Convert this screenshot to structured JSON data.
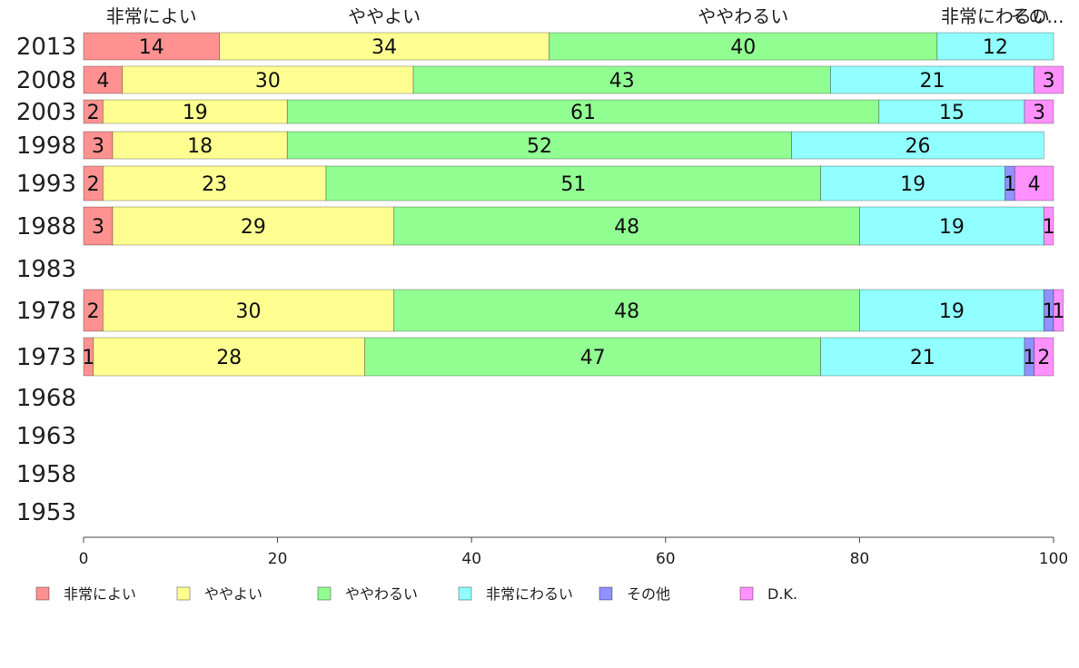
{
  "chart_data": {
    "type": "bar",
    "orientation": "horizontal",
    "stacked": true,
    "xlim": [
      0,
      100
    ],
    "x_ticks": [
      0,
      20,
      40,
      60,
      80,
      100
    ],
    "grid": false,
    "legend_position": "bottom",
    "categories": [
      "2013",
      "2008",
      "2003",
      "1998",
      "1993",
      "1988",
      "1983",
      "1978",
      "1973",
      "1968",
      "1963",
      "1958",
      "1953"
    ],
    "series": [
      {
        "name": "非常によい",
        "color": "#ff9191",
        "values": [
          14,
          4,
          2,
          3,
          2,
          3,
          null,
          2,
          1,
          null,
          null,
          null,
          null
        ]
      },
      {
        "name": "ややよい",
        "color": "#ffff91",
        "values": [
          34,
          30,
          19,
          18,
          23,
          29,
          null,
          30,
          28,
          null,
          null,
          null,
          null
        ]
      },
      {
        "name": "ややわるい",
        "color": "#91ff91",
        "values": [
          40,
          43,
          61,
          52,
          51,
          48,
          null,
          48,
          47,
          null,
          null,
          null,
          null
        ]
      },
      {
        "name": "非常にわるい",
        "color": "#91ffff",
        "values": [
          12,
          21,
          15,
          26,
          19,
          19,
          null,
          19,
          21,
          null,
          null,
          null,
          null
        ]
      },
      {
        "name": "その他",
        "color": "#9191ff",
        "values": [
          0,
          0,
          0,
          0,
          1,
          0,
          null,
          1,
          1,
          null,
          null,
          null,
          null
        ]
      },
      {
        "name": "D.K.",
        "color": "#ff91ff",
        "values": [
          0,
          3,
          3,
          0,
          4,
          1,
          null,
          1,
          2,
          null,
          null,
          null,
          null
        ]
      }
    ],
    "top_labels": [
      "非常によい",
      "ややよい",
      "ややわるい",
      "非常にわるい",
      "その..."
    ]
  }
}
